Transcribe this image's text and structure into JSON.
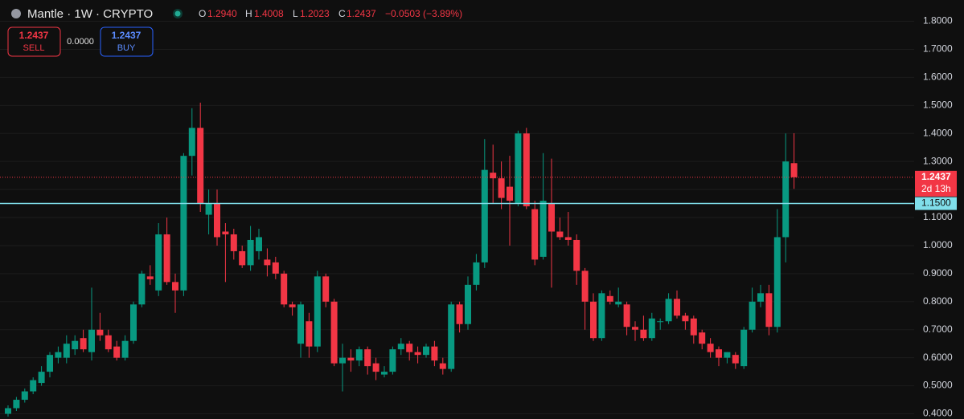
{
  "chart_data": {
    "type": "candlestick",
    "title": "Mantle · 1W · CRYPTO",
    "legend": {
      "open_label": "O",
      "open": "1.2940",
      "high_label": "H",
      "high": "1.4008",
      "low_label": "L",
      "low": "1.2023",
      "close_label": "C",
      "close": "1.2437",
      "change": "−0.0503 (−3.89%)"
    },
    "trade": {
      "sell_price": "1.2437",
      "sell_label": "SELL",
      "spread": "0.0000",
      "buy_price": "1.2437",
      "buy_label": "BUY"
    },
    "up_color": "#089981",
    "down_color": "#f23645",
    "open": [
      0.4,
      0.42,
      0.45,
      0.48,
      0.51,
      0.55,
      0.6,
      0.6,
      0.63,
      0.67,
      0.62,
      0.7,
      0.68,
      0.64,
      0.6,
      0.66,
      0.79,
      0.89,
      0.84,
      1.04,
      0.87,
      0.84,
      1.32,
      1.42,
      1.11,
      1.15,
      1.05,
      1.04,
      0.98,
      0.93,
      0.98,
      0.95,
      0.94,
      0.9,
      0.79,
      0.65,
      0.73,
      0.64,
      0.89,
      0.8,
      0.58,
      0.6,
      0.59,
      0.63,
      0.58,
      0.54,
      0.55,
      0.63,
      0.65,
      0.62,
      0.61,
      0.64,
      0.58,
      0.56,
      0.79,
      0.72,
      0.86,
      0.94,
      1.26,
      1.24,
      1.21,
      1.15,
      1.4,
      1.13,
      0.96,
      1.15,
      1.05,
      1.03,
      1.02,
      0.91,
      0.8,
      0.67,
      0.82,
      0.79,
      0.79,
      0.71,
      0.7,
      0.67,
      0.73,
      0.73,
      0.81,
      0.75,
      0.74,
      0.69,
      0.65,
      0.63,
      0.6,
      0.61,
      0.57,
      0.7,
      0.8,
      0.83,
      0.71,
      1.03,
      1.294
    ],
    "high": [
      0.43,
      0.46,
      0.49,
      0.53,
      0.57,
      0.62,
      0.64,
      0.68,
      0.68,
      0.7,
      0.85,
      0.76,
      0.7,
      0.66,
      0.68,
      0.8,
      0.91,
      0.93,
      1.08,
      1.1,
      0.9,
      1.33,
      1.49,
      1.51,
      1.2,
      1.2,
      1.08,
      1.06,
      1.0,
      1.07,
      1.06,
      0.99,
      0.96,
      0.91,
      0.8,
      0.8,
      0.76,
      0.91,
      0.9,
      0.81,
      0.65,
      0.63,
      0.64,
      0.64,
      0.6,
      0.57,
      0.64,
      0.67,
      0.66,
      0.64,
      0.65,
      0.66,
      0.6,
      0.8,
      0.8,
      0.89,
      0.97,
      1.38,
      1.36,
      1.3,
      1.32,
      1.41,
      1.42,
      1.16,
      1.33,
      1.31,
      1.1,
      1.12,
      1.04,
      0.92,
      0.83,
      0.84,
      0.84,
      0.85,
      0.8,
      0.73,
      0.75,
      0.76,
      0.74,
      0.83,
      0.84,
      0.76,
      0.75,
      0.7,
      0.67,
      0.64,
      0.62,
      0.62,
      0.71,
      0.85,
      0.86,
      0.86,
      1.13,
      1.4,
      1.4008
    ],
    "low": [
      0.39,
      0.41,
      0.44,
      0.47,
      0.5,
      0.53,
      0.58,
      0.58,
      0.61,
      0.62,
      0.59,
      0.66,
      0.62,
      0.59,
      0.59,
      0.65,
      0.78,
      0.86,
      0.82,
      0.86,
      0.76,
      0.82,
      1.25,
      1.12,
      1.04,
      1.0,
      0.87,
      0.95,
      0.92,
      0.91,
      0.95,
      0.89,
      0.88,
      0.78,
      0.75,
      0.6,
      0.6,
      0.62,
      0.78,
      0.57,
      0.48,
      0.55,
      0.57,
      0.54,
      0.52,
      0.53,
      0.54,
      0.61,
      0.59,
      0.58,
      0.6,
      0.57,
      0.54,
      0.55,
      0.69,
      0.7,
      0.84,
      0.92,
      1.15,
      1.13,
      1.0,
      1.14,
      1.13,
      0.93,
      0.95,
      0.85,
      1.02,
      1.0,
      0.86,
      0.7,
      0.66,
      0.66,
      0.79,
      0.78,
      0.68,
      0.66,
      0.66,
      0.66,
      0.7,
      0.72,
      0.74,
      0.7,
      0.65,
      0.63,
      0.6,
      0.57,
      0.58,
      0.56,
      0.56,
      0.69,
      0.78,
      0.68,
      0.69,
      0.94,
      1.2023
    ],
    "close": [
      0.42,
      0.45,
      0.48,
      0.52,
      0.55,
      0.61,
      0.62,
      0.65,
      0.66,
      0.63,
      0.7,
      0.68,
      0.63,
      0.6,
      0.66,
      0.79,
      0.9,
      0.88,
      1.04,
      0.87,
      0.84,
      1.32,
      1.42,
      1.15,
      1.15,
      1.03,
      1.04,
      0.98,
      0.93,
      1.02,
      1.03,
      0.93,
      0.9,
      0.79,
      0.78,
      0.79,
      0.64,
      0.89,
      0.8,
      0.58,
      0.6,
      0.59,
      0.63,
      0.57,
      0.55,
      0.55,
      0.63,
      0.65,
      0.62,
      0.61,
      0.64,
      0.59,
      0.56,
      0.79,
      0.72,
      0.86,
      0.94,
      1.27,
      1.24,
      1.17,
      1.16,
      1.4,
      1.14,
      0.95,
      1.16,
      1.05,
      1.03,
      1.02,
      0.91,
      0.8,
      0.67,
      0.83,
      0.8,
      0.8,
      0.71,
      0.7,
      0.67,
      0.74,
      0.73,
      0.81,
      0.75,
      0.73,
      0.68,
      0.65,
      0.62,
      0.6,
      0.62,
      0.58,
      0.7,
      0.8,
      0.83,
      0.71,
      1.03,
      1.3,
      1.2437
    ],
    "ylim": [
      0.3814,
      1.876
    ],
    "yticks": [
      {
        "value": 0.4,
        "label": "0.4000"
      },
      {
        "value": 0.5,
        "label": "0.5000"
      },
      {
        "value": 0.6,
        "label": "0.6000"
      },
      {
        "value": 0.7,
        "label": "0.7000"
      },
      {
        "value": 0.8,
        "label": "0.8000"
      },
      {
        "value": 0.9,
        "label": "0.9000"
      },
      {
        "value": 1.0,
        "label": "1.0000"
      },
      {
        "value": 1.1,
        "label": "1.1000"
      },
      {
        "value": 1.2,
        "label": "1.2000"
      },
      {
        "value": 1.3,
        "label": "1.3000"
      },
      {
        "value": 1.4,
        "label": "1.4000"
      },
      {
        "value": 1.5,
        "label": "1.5000"
      },
      {
        "value": 1.6,
        "label": "1.6000"
      },
      {
        "value": 1.7,
        "label": "1.7000"
      },
      {
        "value": 1.8,
        "label": "1.8000"
      }
    ],
    "last_price": {
      "value": 1.2437,
      "label": "1.2437",
      "countdown": "2d 13h"
    },
    "hline": {
      "value": 1.15,
      "label": "1.1500",
      "color": "#80deea"
    }
  }
}
